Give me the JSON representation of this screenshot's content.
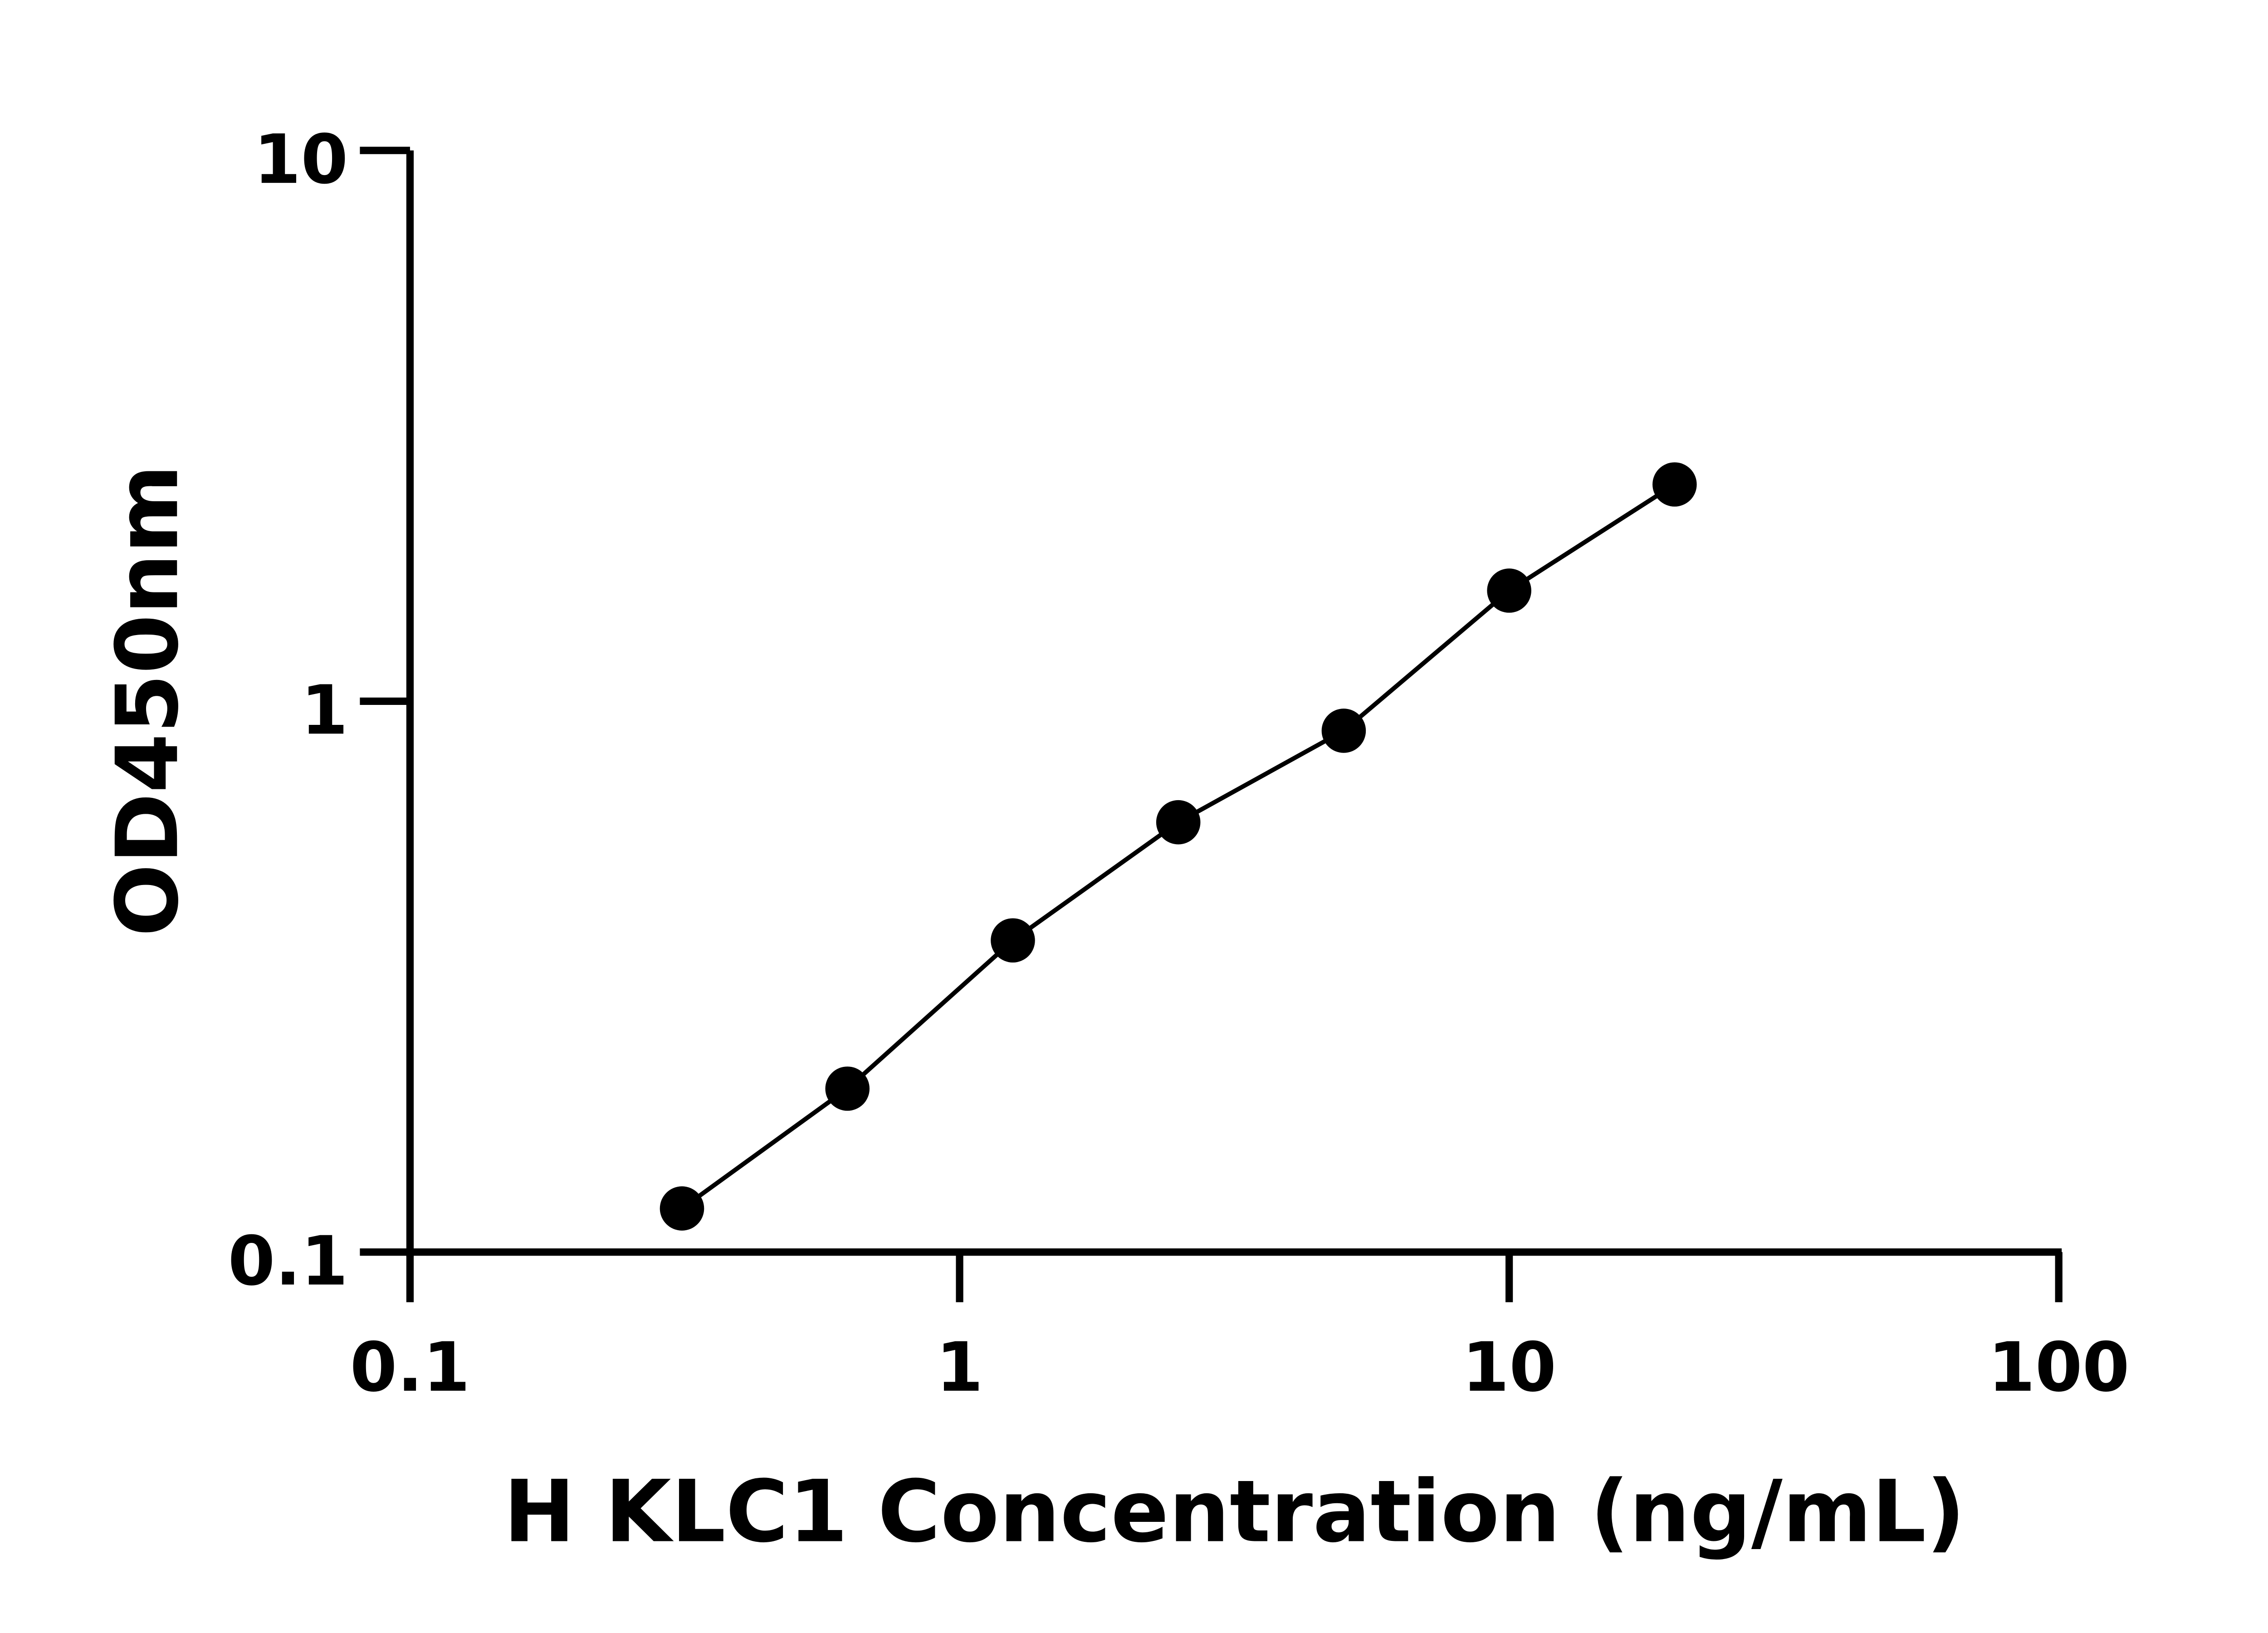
{
  "chart_data": {
    "type": "line",
    "title": "",
    "xlabel": "H KLC1 Concentration (ng/mL)",
    "ylabel": "OD450nm",
    "xscale": "log",
    "yscale": "log",
    "xlim": [
      0.1,
      100
    ],
    "ylim": [
      0.1,
      10
    ],
    "xticks": [
      0.1,
      1,
      10,
      100
    ],
    "xtick_labels": [
      "0.1",
      "1",
      "10",
      "100"
    ],
    "yticks": [
      0.1,
      1,
      10
    ],
    "ytick_labels": [
      "0.1",
      "1",
      "10"
    ],
    "grid": false,
    "legend": "none",
    "series": [
      {
        "x": [
          0.3125,
          0.625,
          1.25,
          2.5,
          5,
          10,
          20
        ],
        "y": [
          0.12,
          0.198,
          0.368,
          0.603,
          0.884,
          1.588,
          2.475
        ],
        "color": "#000000",
        "marker": "circle"
      }
    ]
  }
}
